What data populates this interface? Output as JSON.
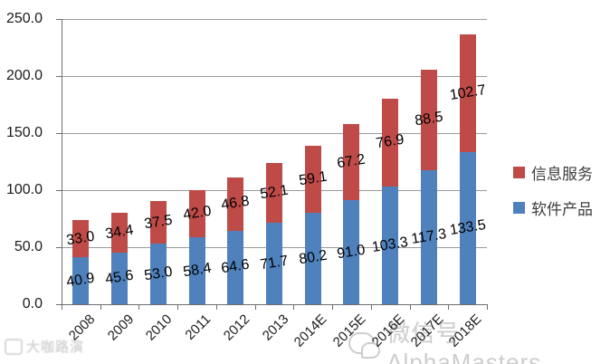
{
  "chart_data": {
    "type": "bar",
    "stacked": true,
    "title": "",
    "xlabel": "",
    "ylabel": "",
    "categories": [
      "2008",
      "2009",
      "2010",
      "2011",
      "2012",
      "2013",
      "2014E",
      "2015E",
      "2016E",
      "2017E",
      "2018E"
    ],
    "series": [
      {
        "name": "软件产品",
        "color": "#4F81BD",
        "values": [
          40.9,
          45.6,
          53.0,
          58.4,
          64.6,
          71.7,
          80.2,
          91.0,
          103.3,
          117.3,
          133.5
        ]
      },
      {
        "name": "信息服务",
        "color": "#BE4B48",
        "values": [
          33.0,
          34.4,
          37.5,
          42.0,
          46.8,
          52.1,
          59.1,
          67.2,
          76.9,
          88.5,
          102.7
        ]
      }
    ],
    "ylim": [
      0,
      250
    ],
    "y_ticks": [
      0,
      50,
      100,
      150,
      200,
      250
    ],
    "y_tick_labels": [
      "0.0",
      "50.0",
      "100.0",
      "150.0",
      "200.0",
      "250.0"
    ],
    "grid": true,
    "legend_position": "right",
    "legend": [
      {
        "label": "信息服务",
        "color": "#BE4B48"
      },
      {
        "label": "软件产品",
        "color": "#4F81BD"
      }
    ],
    "data_label_decimals": 1
  },
  "watermarks": {
    "wechat_text": "微信号AlphaMasters",
    "corner_text": "大咖路演"
  },
  "colors": {
    "bar_blue": "#4F81BD",
    "bar_red": "#BE4B48",
    "gridline": "#9a9a9a",
    "axis": "#6e6e6e",
    "watermark": "#cdcdcd"
  }
}
